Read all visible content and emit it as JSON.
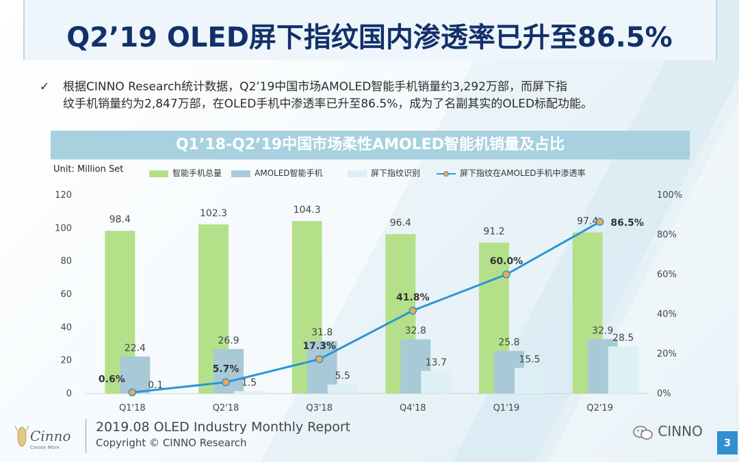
{
  "page_title": "Q2’19 OLED屏下指纹国内渗透率已升至86.5%",
  "description": {
    "check_glyph": "✓",
    "line1": "根据CINNO Research统计数据，Q2’19中国市场AMOLED智能手机销量约3,292万部，而屏下指",
    "line2": "纹手机销量约为2,847万部，在OLED手机中渗透率已升至86.5%，成为了名副其实的OLED标配功能。"
  },
  "chart_data": {
    "type": "bar",
    "title": "Q1’18-Q2’19中国市场柔性AMOLED智能机销量及占比",
    "unit_label": "Unit: Million Set",
    "categories": [
      "Q1'18",
      "Q2'18",
      "Q3'18",
      "Q4'18",
      "Q1'19",
      "Q2'19"
    ],
    "ylim": [
      0,
      120
    ],
    "y_ticks": [
      "0",
      "20",
      "40",
      "60",
      "80",
      "100",
      "120"
    ],
    "y2lim": [
      0,
      100
    ],
    "y2_ticks": [
      "0%",
      "20%",
      "40%",
      "60%",
      "80%",
      "100%"
    ],
    "legend_position": "top",
    "series": [
      {
        "name": "智能手机总量",
        "values": [
          98.4,
          102.3,
          104.3,
          96.4,
          91.2,
          97.4
        ],
        "labels": [
          "98.4",
          "102.3",
          "104.3",
          "96.4",
          "91.2",
          "97.4"
        ],
        "color": "#b5e08a"
      },
      {
        "name": "AMOLED智能手机",
        "values": [
          22.4,
          26.9,
          31.8,
          32.8,
          25.8,
          32.9
        ],
        "labels": [
          "22.4",
          "26.9",
          "31.8",
          "32.8",
          "25.8",
          "32.9"
        ],
        "color": "#a7cad6"
      },
      {
        "name": "屏下指纹识别",
        "values": [
          0.1,
          1.5,
          5.5,
          13.7,
          15.5,
          28.5
        ],
        "labels": [
          "0.1",
          "1.5",
          "5.5",
          "13.7",
          "15.5",
          "28.5"
        ],
        "color": "#dcf0f6"
      },
      {
        "name": "屏下指纹在AMOLED手机中渗透率",
        "type": "line",
        "axis": "right",
        "values": [
          0.6,
          5.7,
          17.3,
          41.8,
          60.0,
          86.5
        ],
        "labels": [
          "0.6%",
          "5.7%",
          "17.3%",
          "41.8%",
          "60.0%",
          "86.5%"
        ],
        "color": "#2b95d5",
        "marker_color": "#f3a94e"
      }
    ]
  },
  "footer": {
    "logo_text": "Cinno",
    "logo_tagline": "Create More",
    "report_title": "2019.08 OLED Industry Monthly Report",
    "copyright": "Copyright © CINNO Research",
    "wechat_label": "CINNO",
    "page_number": "3"
  }
}
